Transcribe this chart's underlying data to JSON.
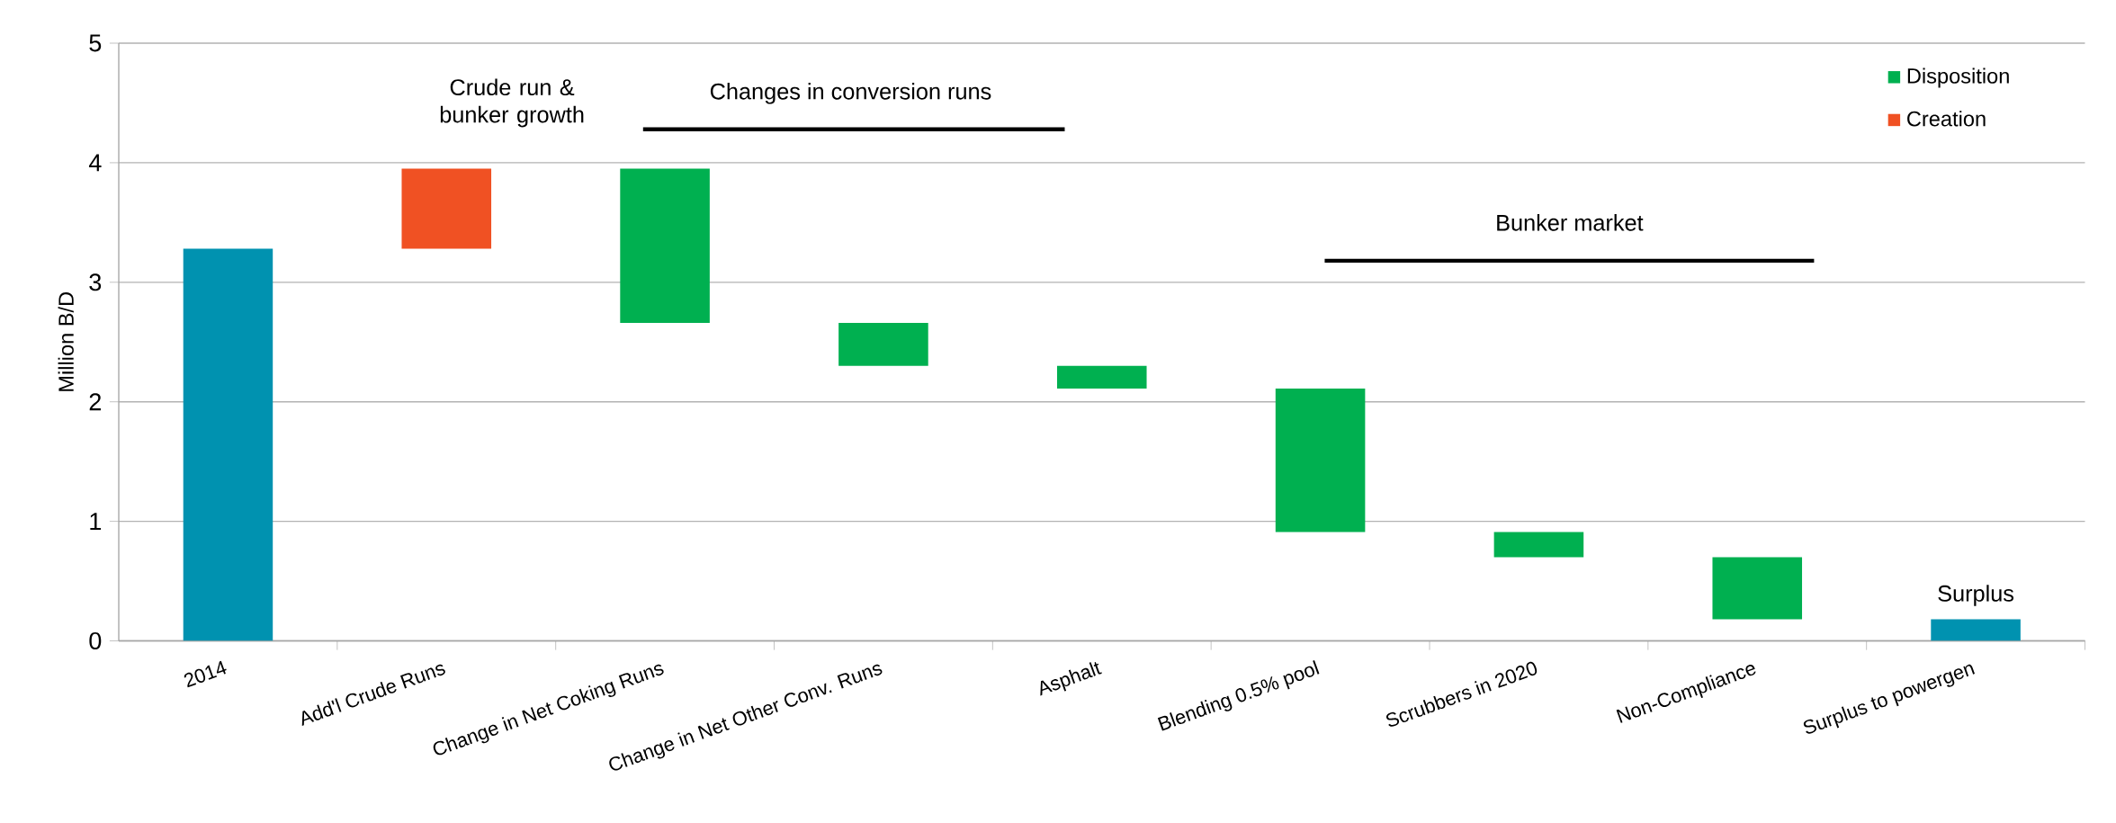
{
  "chart_data": {
    "type": "bar",
    "ylabel": "Million B/D",
    "categories": [
      "2014",
      "Add'l Crude Runs",
      "Change in Net Coking Runs",
      "Change in Net Other Conv.  Runs",
      "Asphalt",
      "Blending 0.5% pool",
      "Scrubbers in 2020",
      "Non-Compliance",
      "Surplus to powergen"
    ],
    "series": [
      {
        "color": "#0092b0",
        "values": [
          3.28,
          null,
          null,
          null,
          null,
          null,
          null,
          null,
          0.18
        ],
        "base": [
          0,
          null,
          null,
          null,
          null,
          null,
          null,
          null,
          0
        ]
      },
      {
        "name": "Disposition",
        "color": "#00b050",
        "values": [
          null,
          null,
          1.29,
          0.36,
          0.19,
          1.2,
          0.21,
          0.52,
          null
        ],
        "base": [
          null,
          null,
          2.66,
          2.3,
          2.11,
          0.91,
          0.7,
          0.18,
          null
        ]
      },
      {
        "name": "Creation",
        "color": "#f05123",
        "values": [
          null,
          0.67,
          null,
          null,
          null,
          null,
          null,
          null,
          null
        ],
        "base": [
          null,
          3.28,
          null,
          null,
          null,
          null,
          null,
          null,
          null
        ]
      }
    ],
    "ylim": [
      0,
      5
    ],
    "yticks": [
      0,
      1,
      2,
      3,
      4,
      5
    ],
    "grid": "y",
    "legend": "top right",
    "annotations": [
      "Crude run & bunker growth",
      "Changes in conversion runs",
      "Bunker market",
      "Surplus"
    ]
  }
}
